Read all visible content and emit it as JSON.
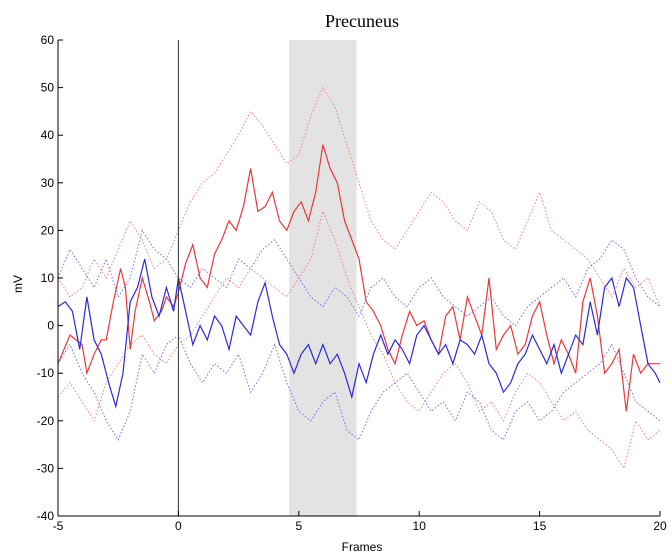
{
  "chart_data": {
    "type": "line",
    "title": "Precuneus",
    "xlabel": "Frames",
    "ylabel": "mV",
    "xlim": [
      -5,
      20
    ],
    "ylim": [
      -40,
      60
    ],
    "xticks": [
      -5,
      0,
      5,
      10,
      15,
      20
    ],
    "yticks": [
      -40,
      -30,
      -20,
      -10,
      0,
      10,
      20,
      30,
      40,
      50,
      60
    ],
    "grid": false,
    "legend": "none",
    "vline_x": 0,
    "shaded_region": {
      "x0": 4.6,
      "x1": 7.4,
      "color": "#e3e3e3"
    },
    "series": [
      {
        "color": "#e8383a",
        "style": "solid",
        "x": [
          -5,
          -4.5,
          -4,
          -3.8,
          -3.5,
          -3.2,
          -3,
          -2.7,
          -2.4,
          -2.2,
          -2,
          -1.8,
          -1.5,
          -1.2,
          -1,
          -0.7,
          -0.5,
          -0.2,
          0,
          0.3,
          0.6,
          0.9,
          1.2,
          1.5,
          1.8,
          2.1,
          2.4,
          2.7,
          3,
          3.3,
          3.6,
          3.9,
          4.2,
          4.5,
          4.8,
          5.1,
          5.4,
          5.7,
          6,
          6.3,
          6.6,
          6.9,
          7.2,
          7.5,
          7.8,
          8.1,
          8.4,
          8.7,
          9,
          9.3,
          9.6,
          9.9,
          10.2,
          10.5,
          10.8,
          11.1,
          11.4,
          11.7,
          12,
          12.3,
          12.6,
          12.9,
          13.2,
          13.5,
          13.8,
          14.1,
          14.4,
          14.7,
          15,
          15.3,
          15.6,
          15.9,
          16.2,
          16.5,
          16.8,
          17.1,
          17.4,
          17.7,
          18,
          18.3,
          18.6,
          18.9,
          19.2,
          19.5,
          20
        ],
        "y": [
          -8,
          -2,
          -4,
          -10,
          -6,
          -3,
          -3,
          5,
          12,
          8,
          -5,
          3,
          10,
          5,
          1,
          3,
          6,
          4,
          7,
          13,
          17,
          10,
          8,
          15,
          18,
          22,
          20,
          25,
          33,
          24,
          25,
          28,
          22,
          20,
          24,
          26,
          22,
          28,
          38,
          33,
          30,
          22,
          18,
          14,
          5,
          3,
          0,
          -5,
          -8,
          -2,
          3,
          0,
          1,
          -3,
          -6,
          2,
          4,
          -3,
          6,
          2,
          -2,
          10,
          -5,
          -2,
          0,
          -6,
          -4,
          2,
          5,
          -2,
          -8,
          -3,
          -6,
          -10,
          5,
          10,
          2,
          -10,
          -8,
          -5,
          -18,
          -6,
          -10,
          -8,
          -8
        ]
      },
      {
        "color": "#2a2ad8",
        "style": "solid",
        "x": [
          -5,
          -4.7,
          -4.4,
          -4.1,
          -3.8,
          -3.5,
          -3.2,
          -2.9,
          -2.6,
          -2.3,
          -2,
          -1.7,
          -1.4,
          -1.1,
          -0.8,
          -0.5,
          -0.2,
          0,
          0.3,
          0.6,
          0.9,
          1.2,
          1.5,
          1.8,
          2.1,
          2.4,
          2.7,
          3,
          3.3,
          3.6,
          3.9,
          4.2,
          4.5,
          4.8,
          5.1,
          5.4,
          5.7,
          6,
          6.3,
          6.6,
          6.9,
          7.2,
          7.5,
          7.8,
          8.1,
          8.4,
          8.7,
          9,
          9.3,
          9.6,
          9.9,
          10.2,
          10.5,
          10.8,
          11.1,
          11.4,
          11.7,
          12,
          12.3,
          12.6,
          12.9,
          13.2,
          13.5,
          13.8,
          14.1,
          14.4,
          14.7,
          15,
          15.3,
          15.6,
          15.9,
          16.2,
          16.5,
          16.8,
          17.1,
          17.4,
          17.7,
          18,
          18.3,
          18.6,
          18.9,
          19.2,
          19.5,
          19.8,
          20
        ],
        "y": [
          4,
          5,
          3,
          -5,
          6,
          -3,
          -6,
          -12,
          -17,
          -10,
          5,
          8,
          14,
          6,
          2,
          8,
          3,
          10,
          3,
          -4,
          0,
          -3,
          2,
          0,
          -5,
          2,
          0,
          -2,
          5,
          9,
          2,
          -4,
          -6,
          -10,
          -6,
          -4,
          -8,
          -4,
          -8,
          -6,
          -10,
          -15,
          -8,
          -12,
          -6,
          -2,
          -6,
          -3,
          -5,
          -8,
          -2,
          0,
          -3,
          -6,
          -4,
          -8,
          -3,
          -4,
          -6,
          -2,
          -8,
          -10,
          -14,
          -12,
          -8,
          -6,
          -2,
          -5,
          -8,
          -4,
          -10,
          -6,
          -2,
          -4,
          5,
          -2,
          8,
          10,
          4,
          10,
          8,
          0,
          -8,
          -10,
          -12
        ]
      },
      {
        "color": "#f08080",
        "style": "dotted",
        "x": [
          -5,
          -4.5,
          -4,
          -3.5,
          -3,
          -2.5,
          -2,
          -1.5,
          -1,
          -0.5,
          0,
          0.5,
          1,
          1.5,
          2,
          2.5,
          3,
          3.5,
          4,
          4.5,
          5,
          5.5,
          6,
          6.5,
          7,
          7.5,
          8,
          8.5,
          9,
          9.5,
          10,
          10.5,
          11,
          11.5,
          12,
          12.5,
          13,
          13.5,
          14,
          14.5,
          15,
          15.5,
          16,
          16.5,
          17,
          17.5,
          18,
          18.5,
          19,
          19.5,
          20
        ],
        "y": [
          10,
          6,
          8,
          14,
          10,
          16,
          22,
          18,
          12,
          14,
          20,
          26,
          30,
          32,
          36,
          40,
          45,
          42,
          38,
          34,
          36,
          44,
          50,
          46,
          38,
          30,
          22,
          18,
          16,
          20,
          24,
          28,
          26,
          22,
          20,
          26,
          24,
          18,
          16,
          22,
          28,
          20,
          18,
          16,
          14,
          10,
          6,
          12,
          8,
          10,
          4
        ]
      },
      {
        "color": "#f08080",
        "style": "dotted",
        "x": [
          -5,
          -4.5,
          -4,
          -3.5,
          -3,
          -2.5,
          -2,
          -1.5,
          -1,
          -0.5,
          0,
          0.5,
          1,
          1.5,
          2,
          2.5,
          3,
          3.5,
          4,
          4.5,
          5,
          5.5,
          6,
          6.5,
          7,
          7.5,
          8,
          8.5,
          9,
          9.5,
          10,
          10.5,
          11,
          11.5,
          12,
          12.5,
          13,
          13.5,
          14,
          14.5,
          15,
          15.5,
          16,
          16.5,
          17,
          17.5,
          18,
          18.5,
          19,
          19.5,
          20
        ],
        "y": [
          -15,
          -12,
          -16,
          -20,
          -12,
          -8,
          -4,
          -2,
          -6,
          -8,
          -4,
          -2,
          2,
          6,
          10,
          8,
          12,
          10,
          8,
          6,
          10,
          14,
          24,
          18,
          10,
          4,
          -2,
          -6,
          -12,
          -16,
          -18,
          -14,
          -10,
          -8,
          -12,
          -18,
          -16,
          -20,
          -14,
          -10,
          -12,
          -16,
          -20,
          -18,
          -22,
          -24,
          -26,
          -30,
          -20,
          -24,
          -22
        ]
      },
      {
        "color": "#6f6fe8",
        "style": "dotted",
        "x": [
          -5,
          -4.5,
          -4,
          -3.5,
          -3,
          -2.5,
          -2,
          -1.5,
          -1,
          -0.5,
          0,
          0.5,
          1,
          1.5,
          2,
          2.5,
          3,
          3.5,
          4,
          4.5,
          5,
          5.5,
          6,
          6.5,
          7,
          7.5,
          8,
          8.5,
          9,
          9.5,
          10,
          10.5,
          11,
          11.5,
          12,
          12.5,
          13,
          13.5,
          14,
          14.5,
          15,
          15.5,
          16,
          16.5,
          17,
          17.5,
          18,
          18.5,
          19,
          19.5,
          20
        ],
        "y": [
          10,
          16,
          12,
          8,
          14,
          6,
          10,
          20,
          16,
          14,
          10,
          8,
          12,
          10,
          8,
          14,
          12,
          16,
          18,
          14,
          10,
          6,
          4,
          8,
          6,
          2,
          8,
          10,
          6,
          4,
          8,
          10,
          6,
          4,
          2,
          4,
          6,
          2,
          0,
          4,
          6,
          8,
          10,
          6,
          12,
          14,
          18,
          16,
          10,
          6,
          4
        ]
      },
      {
        "color": "#6f6fe8",
        "style": "dotted",
        "x": [
          -5,
          -4.5,
          -4,
          -3.5,
          -3,
          -2.5,
          -2,
          -1.5,
          -1,
          -0.5,
          0,
          0.5,
          1,
          1.5,
          2,
          2.5,
          3,
          3.5,
          4,
          4.5,
          5,
          5.5,
          6,
          6.5,
          7,
          7.5,
          8,
          8.5,
          9,
          9.5,
          10,
          10.5,
          11,
          11.5,
          12,
          12.5,
          13,
          13.5,
          14,
          14.5,
          15,
          15.5,
          16,
          16.5,
          17,
          17.5,
          18,
          18.5,
          19,
          19.5,
          20
        ],
        "y": [
          -8,
          -4,
          -10,
          -14,
          -20,
          -24,
          -18,
          -6,
          -10,
          -4,
          -2,
          -8,
          -12,
          -8,
          -10,
          -6,
          -14,
          -10,
          -4,
          -12,
          -18,
          -20,
          -16,
          -14,
          -22,
          -24,
          -18,
          -14,
          -12,
          -10,
          -14,
          -18,
          -16,
          -20,
          -14,
          -16,
          -22,
          -24,
          -18,
          -16,
          -20,
          -18,
          -14,
          -12,
          -10,
          -8,
          -4,
          -10,
          -16,
          -18,
          -20
        ]
      }
    ]
  }
}
